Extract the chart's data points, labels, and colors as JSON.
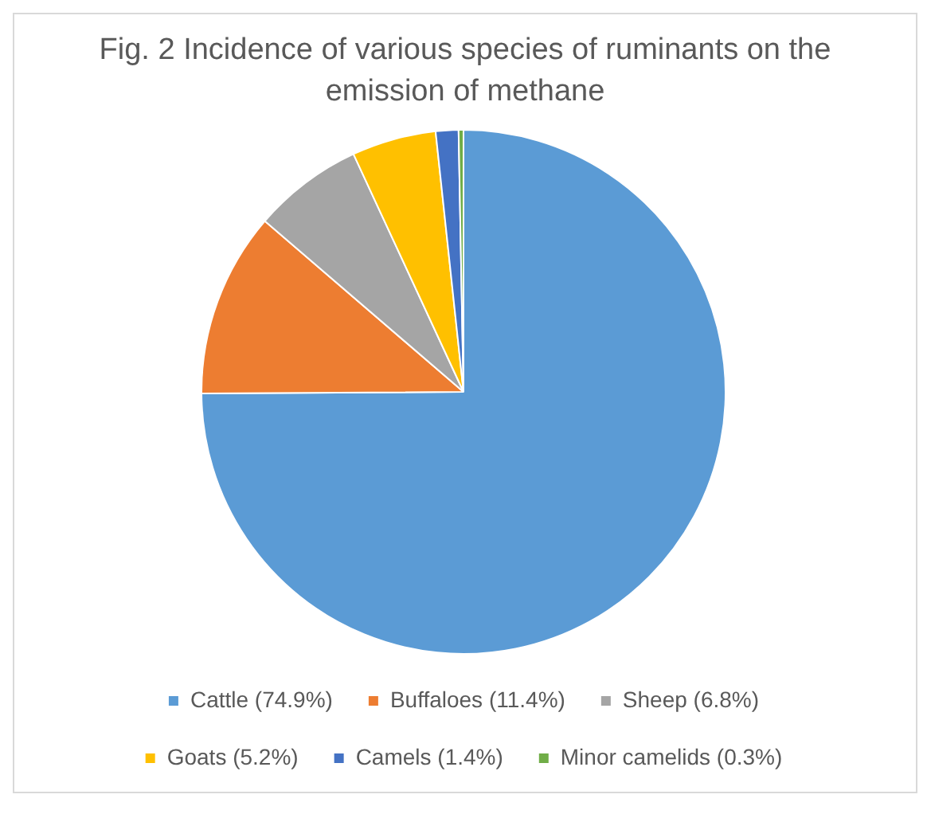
{
  "chart_data": {
    "type": "pie",
    "title": "Fig. 2 Incidence of various species of ruminants on the emission of methane",
    "categories": [
      "Cattle (74.9%)",
      "Buffaloes (11.4%)",
      "Sheep (6.8%)",
      "Goats (5.2%)",
      "Camels (1.4%)",
      "Minor camelids (0.3%)"
    ],
    "values": [
      74.9,
      11.4,
      6.8,
      5.2,
      1.4,
      0.3
    ],
    "colors": [
      "#5b9bd5",
      "#ed7d31",
      "#a5a5a5",
      "#ffc000",
      "#4472c4",
      "#70ad47"
    ],
    "legend": "bottom"
  }
}
